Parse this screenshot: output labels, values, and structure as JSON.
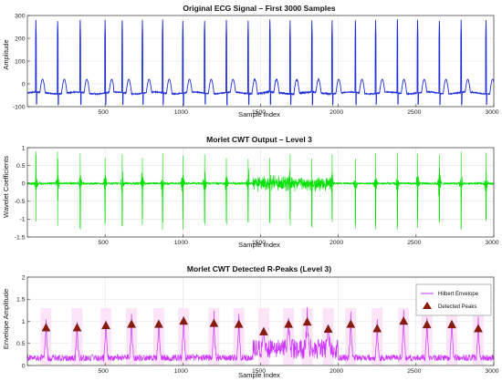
{
  "chart_data": [
    {
      "type": "line",
      "title": "Original ECG Signal – First 3000 Samples",
      "xlabel": "Sample Index",
      "ylabel": "Amplitude",
      "xlim": [
        0,
        3000
      ],
      "ylim": [
        -100,
        300
      ],
      "xticks": [
        500,
        1000,
        1500,
        2000,
        2500,
        3000
      ],
      "yticks": [
        -100,
        0,
        100,
        200,
        300
      ],
      "grid": true,
      "color": "#1f2fd6",
      "r_peaks": [
        55,
        195,
        340,
        500,
        610,
        740,
        870,
        1000,
        1140,
        1280,
        1420,
        1560,
        1690,
        1830,
        1960,
        2110,
        2240,
        2380,
        2510,
        2650,
        2790,
        2950
      ],
      "peak_amplitude": 280,
      "baseline": -40,
      "trough": -90,
      "t_wave_amplitude": 20
    },
    {
      "type": "line",
      "title": "Morlet CWT Output – Level 3",
      "xlabel": "Sample Index",
      "ylabel": "Wavelet Coefficients",
      "xlim": [
        0,
        3000
      ],
      "ylim": [
        -1.5,
        1
      ],
      "xticks": [
        500,
        1000,
        1500,
        2000,
        2500,
        3000
      ],
      "yticks": [
        -1.5,
        -1,
        -0.5,
        0,
        0.5,
        1
      ],
      "grid": true,
      "color": "#00e000",
      "burst_positions": [
        55,
        195,
        340,
        500,
        610,
        740,
        870,
        1000,
        1140,
        1280,
        1420,
        1560,
        1690,
        1830,
        1960,
        2110,
        2240,
        2380,
        2510,
        2650,
        2790,
        2950
      ],
      "burst_max": 0.9,
      "burst_min": -1.3,
      "noisy_segment": [
        1450,
        1950
      ]
    },
    {
      "type": "line",
      "title": "Morlet CWT Detected R-Peaks (Level 3)",
      "xlabel": "Sample Index",
      "ylabel": "Envelope Amplitude",
      "xlim": [
        0,
        3000
      ],
      "ylim": [
        0,
        2
      ],
      "xticks": [
        500,
        1000,
        1500,
        2000,
        2500,
        3000
      ],
      "yticks": [
        0,
        0.5,
        1,
        1.5,
        2
      ],
      "grid": true,
      "legend_position": "top-right",
      "legend": [
        "Hilbert Envelope",
        "Detected Peaks"
      ],
      "envelope_color": "#cc33ff",
      "peak_marker_color": "#8a1a0a",
      "detected_peaks": {
        "x": [
          120,
          320,
          505,
          670,
          845,
          1005,
          1200,
          1360,
          1520,
          1680,
          1800,
          1935,
          2080,
          2250,
          2420,
          2570,
          2730,
          2900
        ],
        "y": [
          0.85,
          0.85,
          0.9,
          0.93,
          0.93,
          1.0,
          0.95,
          0.93,
          0.76,
          0.93,
          0.98,
          0.82,
          0.93,
          0.83,
          1.0,
          0.92,
          0.92,
          0.83
        ]
      }
    }
  ]
}
